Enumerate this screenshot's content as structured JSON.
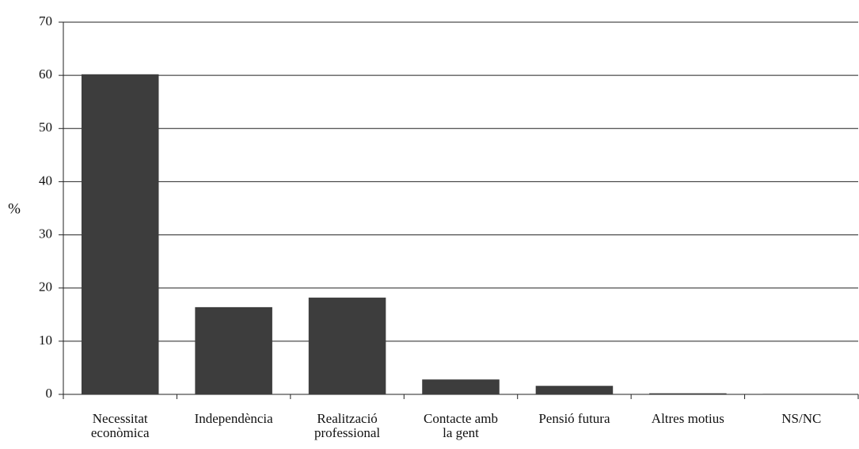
{
  "chart_data": {
    "type": "bar",
    "y_label": "%",
    "categories": [
      [
        "Necessitat",
        "econòmica"
      ],
      [
        "Independència"
      ],
      [
        "Realització",
        "professional"
      ],
      [
        "Contacte amb",
        "la gent"
      ],
      [
        "Pensió futura"
      ],
      [
        "Altres motius"
      ],
      [
        "NS/NC"
      ]
    ],
    "values": [
      60.2,
      16.4,
      18.2,
      2.8,
      1.6,
      0.2,
      0.1
    ],
    "color": "#3d3d3d",
    "ylim": [
      0,
      70
    ],
    "yticks": [
      0,
      10,
      20,
      30,
      40,
      50,
      60,
      70
    ],
    "grid": true
  }
}
